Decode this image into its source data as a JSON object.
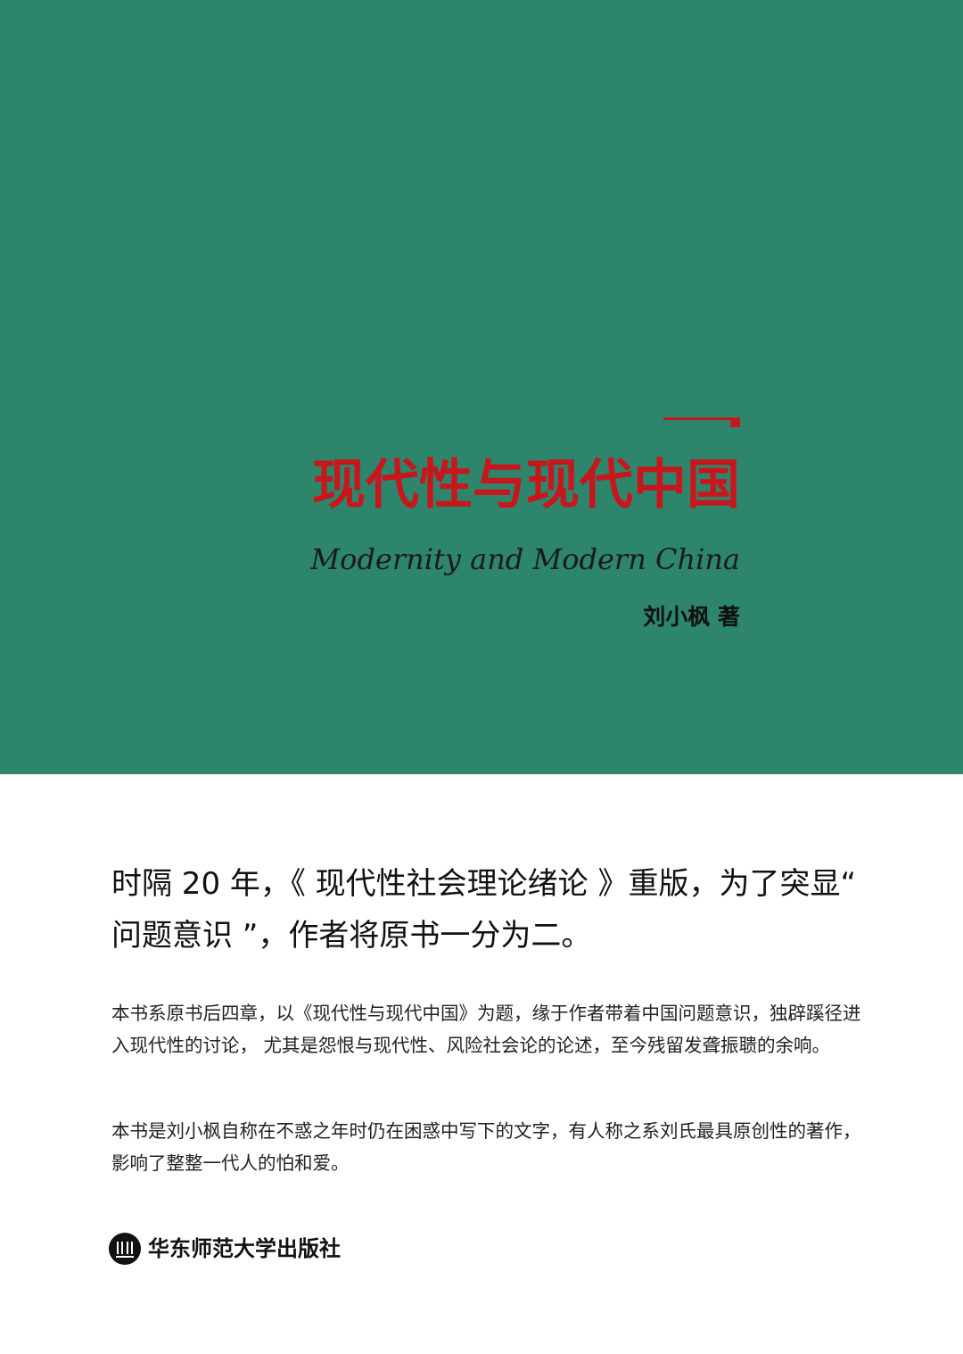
{
  "cover": {
    "title_cn": "现代性与现代中国",
    "title_en": "Modernity and Modern China",
    "author": "刘小枫 著"
  },
  "blurb": {
    "headline": "时隔 20 年，《 现代性社会理论绪论 》重版，为了突显“ 问题意识 ”，作者将原书一分为二。",
    "paragraph_1": "本书系原书后四章，以《现代性与现代中国》为题，缘于作者带着中国问题意识，独辟蹊径进入现代性的讨论， 尤其是怨恨与现代性、风险社会论的论述，至今残留发聋振聩的余响。",
    "paragraph_2": "本书是刘小枫自称在不惑之年时仍在困惑中写下的文字，有人称之系刘氏最具原创性的著作，影响了整整一代人的怕和爱。"
  },
  "publisher": {
    "name": "华东师范大学出版社",
    "logo_icon": "publisher-logo-icon"
  },
  "colors": {
    "cover_green": "#2d856c",
    "title_red": "#c8161d",
    "background": "#ffffff"
  }
}
